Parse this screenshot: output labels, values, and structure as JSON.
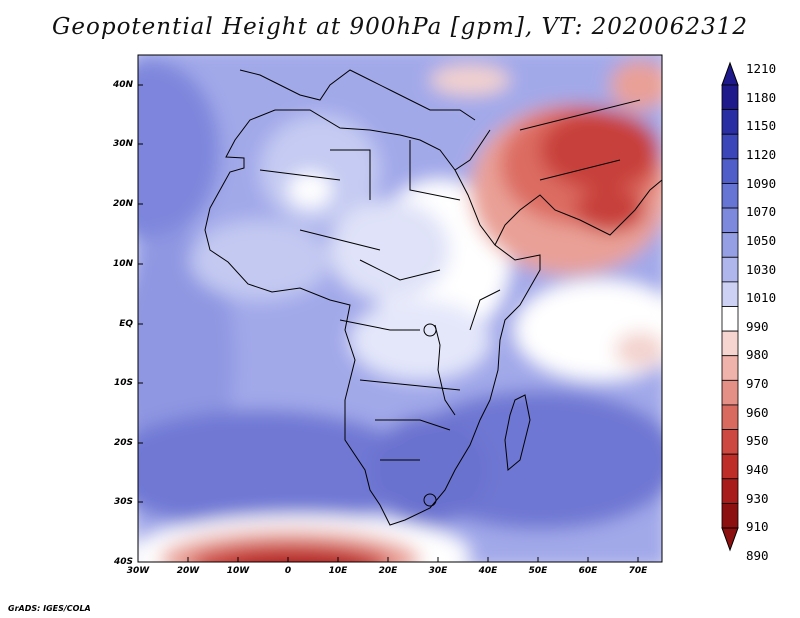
{
  "title": "Geopotential Height at 900hPa [gpm], VT: 2020062312",
  "footer": "GrADS: IGES/COLA",
  "lat_labels": [
    "40N",
    "30N",
    "20N",
    "10N",
    "EQ",
    "10S",
    "20S",
    "30S",
    "40S"
  ],
  "lon_labels": [
    "30W",
    "20W",
    "10W",
    "0",
    "10E",
    "20E",
    "30E",
    "40E",
    "50E",
    "60E",
    "70E"
  ],
  "colorbar": {
    "labels": [
      "1210",
      "1180",
      "1150",
      "1120",
      "1090",
      "1070",
      "1050",
      "1030",
      "1010",
      "990",
      "980",
      "970",
      "960",
      "950",
      "940",
      "930",
      "910",
      "890"
    ],
    "colors": [
      "#1f1a8c",
      "#2a2ea3",
      "#3b46b8",
      "#4f5ec8",
      "#6674d3",
      "#7d89dc",
      "#949fe4",
      "#aeb6ec",
      "#cdd2f4",
      "#ffffff",
      "#f6d4d0",
      "#efb3ab",
      "#e59086",
      "#d96a5f",
      "#cd4840",
      "#bf2d28",
      "#a81d1b",
      "#8c1010"
    ]
  },
  "map": {
    "domain": {
      "lon": [
        -30,
        75
      ],
      "lat": [
        -40,
        45
      ]
    },
    "field_levels_shown": [
      "high heights over S Atlantic/Indian Oceans (blue)",
      "low heights over Arabia/Iran and Southern Ocean (red)"
    ]
  }
}
